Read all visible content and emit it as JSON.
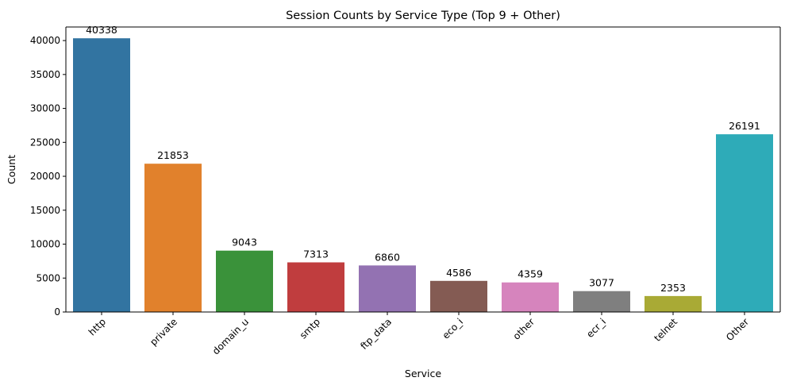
{
  "chart_data": {
    "type": "bar",
    "title": "Session Counts by Service Type (Top 9 + Other)",
    "xlabel": "Service",
    "ylabel": "Count",
    "ylim": [
      0,
      42000
    ],
    "yticks": [
      0,
      5000,
      10000,
      15000,
      20000,
      25000,
      30000,
      35000,
      40000
    ],
    "categories": [
      "http",
      "private",
      "domain_u",
      "smtp",
      "ftp_data",
      "eco_i",
      "other",
      "ecr_i",
      "telnet",
      "Other"
    ],
    "values": [
      40338,
      21853,
      9043,
      7313,
      6860,
      4586,
      4359,
      3077,
      2353,
      26191
    ],
    "colors": [
      "#3274a1",
      "#e1812c",
      "#3a923a",
      "#c03d3e",
      "#9372b2",
      "#845b53",
      "#d684bd",
      "#7f7f7f",
      "#a9aa35",
      "#2eabb8"
    ],
    "grid": false,
    "legend": "none"
  }
}
